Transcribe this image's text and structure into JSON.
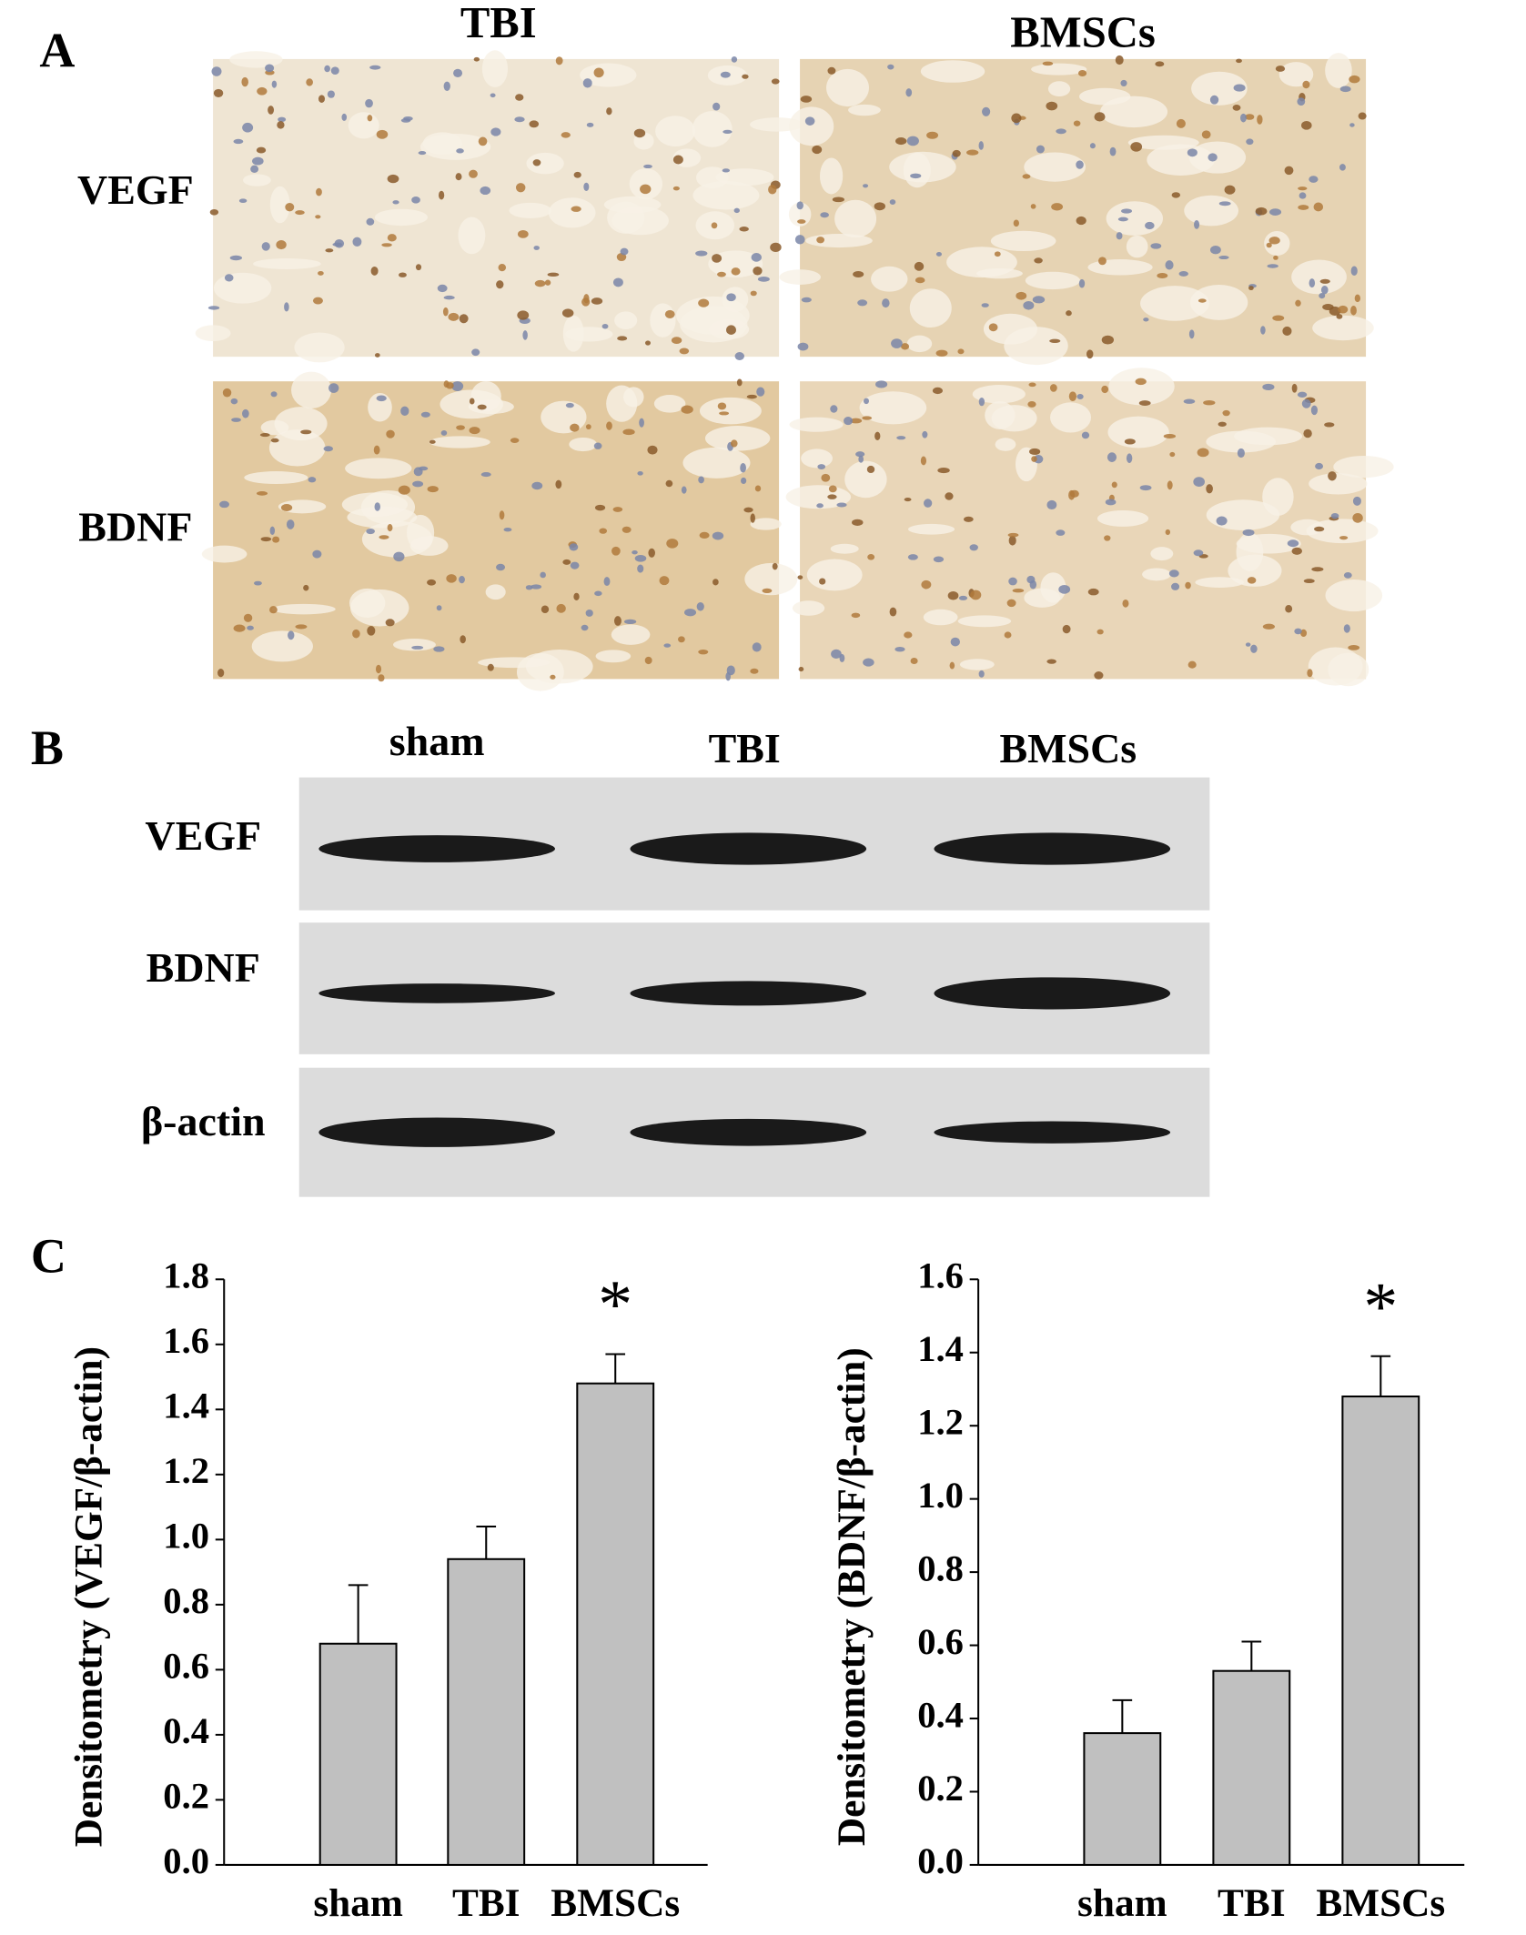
{
  "panel_labels": [
    "A",
    "B",
    "C"
  ],
  "panel_a": {
    "columns": [
      "TBI",
      "BMSCs"
    ],
    "rows": [
      "VEGF",
      "BDNF"
    ]
  },
  "panel_b": {
    "lanes": [
      "sham",
      "TBI",
      "BMSCs"
    ],
    "rows": [
      "VEGF",
      "BDNF",
      "β-actin"
    ]
  },
  "chart_data": [
    {
      "type": "bar",
      "ylabel": "Densitometry (VEGF/β-actin)",
      "categories": [
        "sham",
        "TBI",
        "BMSCs"
      ],
      "values": [
        0.68,
        0.94,
        1.48
      ],
      "errors": [
        0.18,
        0.1,
        0.09
      ],
      "color": "#c0c0c0",
      "ylim": [
        0,
        1.8
      ],
      "yticks": [
        {
          "value": 0,
          "label": "0.0"
        },
        0.2,
        0.4,
        0.6,
        0.8,
        {
          "value": 1,
          "label": "1.0"
        },
        1.2,
        1.4,
        1.6,
        1.8
      ],
      "significance": [
        {
          "category": "BMSCs",
          "label": "*"
        }
      ]
    },
    {
      "type": "bar",
      "ylabel": "Densitometry (BDNF/β-actin)",
      "categories": [
        "sham",
        "TBI",
        "BMSCs"
      ],
      "values": [
        0.36,
        0.53,
        1.28
      ],
      "errors": [
        0.09,
        0.08,
        0.11
      ],
      "color": "#c0c0c0",
      "ylim": [
        0,
        1.6
      ],
      "yticks": [
        {
          "value": 0,
          "label": "0.0"
        },
        0.2,
        0.4,
        0.6,
        0.8,
        {
          "value": 1,
          "label": "1.0"
        },
        1.2,
        1.4,
        1.6
      ],
      "significance": [
        {
          "category": "BMSCs",
          "label": "*"
        }
      ]
    }
  ]
}
